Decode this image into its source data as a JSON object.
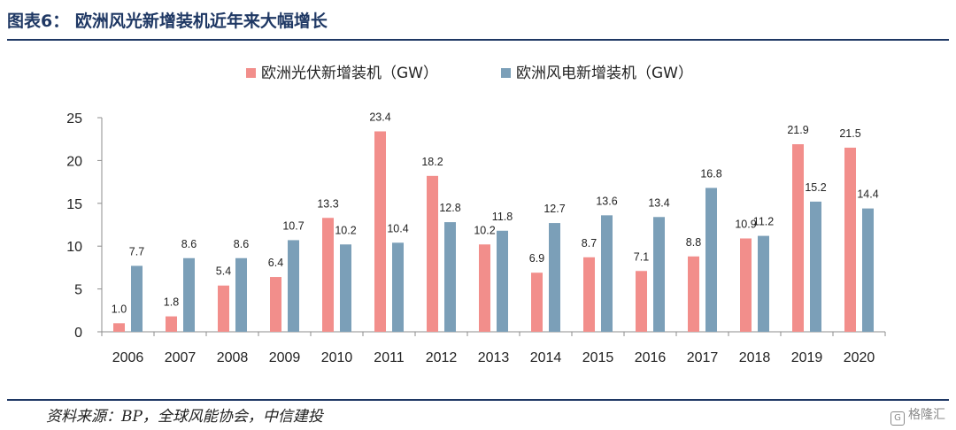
{
  "header": {
    "title": "图表6：  欧洲风光新增装机近年来大幅增长"
  },
  "footer": {
    "source": "资料来源：BP，全球风能协会，中信建投",
    "watermark": "格隆汇"
  },
  "colors": {
    "solar": "#f28e8b",
    "wind": "#7b9fb8",
    "rule": "#1f3864"
  },
  "chart_data": {
    "type": "bar",
    "title": "",
    "xlabel": "",
    "ylabel": "",
    "ylim": [
      0,
      25
    ],
    "yticks": [
      0,
      5,
      10,
      15,
      20,
      25
    ],
    "grid": false,
    "legend_position": "top-center",
    "categories": [
      "2006",
      "2007",
      "2008",
      "2009",
      "2010",
      "2011",
      "2012",
      "2013",
      "2014",
      "2015",
      "2016",
      "2017",
      "2018",
      "2019",
      "2020"
    ],
    "series": [
      {
        "name": "欧洲光伏新增装机（GW）",
        "color": "#f28e8b",
        "values": [
          1.0,
          1.8,
          5.4,
          6.4,
          13.3,
          23.4,
          18.2,
          10.2,
          6.9,
          8.7,
          7.1,
          8.8,
          10.9,
          21.9,
          21.5
        ],
        "labels": [
          "1.0",
          "1.8",
          "5.4",
          "6.4",
          "13.3",
          "23.4",
          "18.2",
          "10.2",
          "6.9",
          "8.7",
          "7.1",
          "8.8",
          "10.9",
          "21.9",
          "21.5"
        ]
      },
      {
        "name": "欧洲风电新增装机（GW）",
        "color": "#7b9fb8",
        "values": [
          7.7,
          8.6,
          8.6,
          10.7,
          10.2,
          10.4,
          12.8,
          11.8,
          12.7,
          13.6,
          13.4,
          16.8,
          11.2,
          15.2,
          14.4
        ],
        "labels": [
          "7.7",
          "8.6",
          "8.6",
          "10.7",
          "10.2",
          "10.4",
          "12.8",
          "11.8",
          "12.7",
          "13.6",
          "13.4",
          "16.8",
          "11.2",
          "15.2",
          "14.4"
        ]
      }
    ]
  }
}
